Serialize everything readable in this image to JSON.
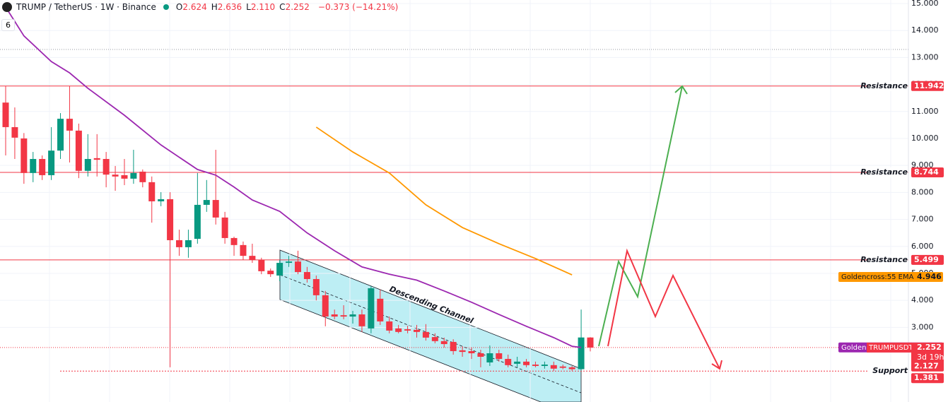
{
  "header": {
    "symbol": "TRUMP / TetherUS · 1W · Binance",
    "ohlc": [
      {
        "key": "O",
        "text": "2.624"
      },
      {
        "key": "H",
        "text": "2.636"
      },
      {
        "key": "L",
        "text": "2.110"
      },
      {
        "key": "C",
        "text": "2.252"
      }
    ],
    "change": "−0.373 (−14.21%)",
    "indicators_count": "6"
  },
  "chart_data": {
    "type": "candlestick",
    "open": [
      11.33,
      10.42,
      10.0,
      8.72,
      9.24,
      8.64,
      9.55,
      10.73,
      10.29,
      8.8,
      9.27,
      9.24,
      8.66,
      8.64,
      8.51,
      8.77,
      8.38,
      7.67,
      7.75,
      6.23,
      5.97,
      6.28,
      7.54,
      7.72,
      7.07,
      6.31,
      6.05,
      5.65,
      5.5,
      5.1,
      4.92,
      5.39,
      5.44,
      5.05,
      4.79,
      4.19,
      3.48,
      3.45,
      3.4,
      3.48,
      2.96,
      4.06,
      3.22,
      2.96,
      2.93,
      2.91,
      2.83,
      2.64,
      2.49,
      2.46,
      2.15,
      2.12,
      2.04,
      1.7,
      2.04,
      1.83,
      1.65,
      1.73,
      1.62,
      1.57,
      1.6,
      1.55,
      1.52,
      1.45,
      2.624
    ],
    "high": [
      11.94,
      11.15,
      10.2,
      9.5,
      9.37,
      10.42,
      10.94,
      11.94,
      10.55,
      10.16,
      10.16,
      9.5,
      8.98,
      9.24,
      9.58,
      8.85,
      8.59,
      8.01,
      8.01,
      6.62,
      6.62,
      8.72,
      8.46,
      9.58,
      7.28,
      6.36,
      6.18,
      6.1,
      5.58,
      5.18,
      5.5,
      5.65,
      5.84,
      5.24,
      4.92,
      4.35,
      3.66,
      3.82,
      3.61,
      3.66,
      4.53,
      4.4,
      3.4,
      3.09,
      3.06,
      3.09,
      3.12,
      2.78,
      2.62,
      2.56,
      2.3,
      2.25,
      2.17,
      2.33,
      2.17,
      1.99,
      1.91,
      1.83,
      1.73,
      1.73,
      1.73,
      1.62,
      1.57,
      3.66,
      2.636
    ],
    "low": [
      9.37,
      9.24,
      8.32,
      8.38,
      8.46,
      8.46,
      9.24,
      9.11,
      8.53,
      8.59,
      8.59,
      8.19,
      8.06,
      8.27,
      8.32,
      8.19,
      6.88,
      7.49,
      1.52,
      5.65,
      5.58,
      6.1,
      7.28,
      6.81,
      6.1,
      5.65,
      5.5,
      5.39,
      4.97,
      4.87,
      4.71,
      5.24,
      4.97,
      4.66,
      4.0,
      3.04,
      3.3,
      3.3,
      3.14,
      2.83,
      2.78,
      3.09,
      2.78,
      2.78,
      2.78,
      2.62,
      2.51,
      2.41,
      2.25,
      1.99,
      1.91,
      1.83,
      1.52,
      1.57,
      1.73,
      1.52,
      1.52,
      1.52,
      1.52,
      1.47,
      1.39,
      1.45,
      1.39,
      1.39,
      2.11
    ],
    "close": [
      10.42,
      10.03,
      8.72,
      9.24,
      8.64,
      9.55,
      10.73,
      10.29,
      8.8,
      9.24,
      9.21,
      8.66,
      8.59,
      8.51,
      8.72,
      8.38,
      7.67,
      7.75,
      6.23,
      5.97,
      6.23,
      7.54,
      7.72,
      7.07,
      6.31,
      6.05,
      5.65,
      5.5,
      5.08,
      4.97,
      5.39,
      5.44,
      5.05,
      4.79,
      4.19,
      3.4,
      3.4,
      3.4,
      3.48,
      3.04,
      4.45,
      3.22,
      2.88,
      2.83,
      2.88,
      2.83,
      2.62,
      2.49,
      2.38,
      2.12,
      2.09,
      2.04,
      1.91,
      2.04,
      1.83,
      1.6,
      1.73,
      1.6,
      1.57,
      1.62,
      1.47,
      1.5,
      1.45,
      2.625,
      2.252
    ],
    "up_color": "#089981",
    "down_color": "#f23645",
    "ylim": [
      0.234,
      15.131
    ],
    "yticks": [
      {
        "value": 3,
        "label": "3.000"
      },
      {
        "value": 4,
        "label": "4.000"
      },
      {
        "value": 5,
        "label": "5.000"
      },
      {
        "value": 6,
        "label": "6.000"
      },
      {
        "value": 7,
        "label": "7.000"
      },
      {
        "value": 8,
        "label": "8.000"
      },
      {
        "value": 9,
        "label": "9.000"
      },
      {
        "value": 10,
        "label": "10.000"
      },
      {
        "value": 11,
        "label": "11.000"
      },
      {
        "value": 12,
        "label": "12.000"
      },
      {
        "value": 13,
        "label": "13.000"
      },
      {
        "value": 14,
        "label": "14.000"
      },
      {
        "value": 15,
        "label": "15.000"
      }
    ],
    "grid": true,
    "series": [
      {
        "name": "Goldencross:21 EMA",
        "color": "#9c27b0",
        "x": [
          0,
          2,
          5,
          7,
          9,
          13,
          17,
          21,
          23,
          25,
          27,
          30,
          33,
          36,
          39,
          42,
          45,
          48,
          51,
          54,
          57,
          60,
          62,
          63
        ],
        "values": [
          14.87,
          13.8,
          12.85,
          12.43,
          11.86,
          10.86,
          9.76,
          8.85,
          8.64,
          8.2,
          7.72,
          7.3,
          6.5,
          5.84,
          5.24,
          4.97,
          4.75,
          4.35,
          3.93,
          3.48,
          3.04,
          2.62,
          2.3,
          2.255
        ],
        "last_value": 2.255
      },
      {
        "name": "Goldencross:55 EMA",
        "color": "#ff9800",
        "x": [
          34,
          38,
          42,
          46,
          50,
          54,
          58,
          62
        ],
        "values": [
          10.42,
          9.5,
          8.72,
          7.54,
          6.7,
          6.1,
          5.55,
          4.946
        ],
        "last_value": 4.946
      }
    ],
    "levels": [
      {
        "label": "Resistance",
        "value": 11.942
      },
      {
        "label": "Resistance",
        "value": 8.744
      },
      {
        "label": "Resistance",
        "value": 5.499
      },
      {
        "label": "Support",
        "value": 1.381
      }
    ],
    "price_label": {
      "name": "TRUMPUSDT",
      "value": 2.252,
      "countdown": "3d 19h"
    },
    "extra_price": 2.127,
    "annotation": "Descending Channel"
  }
}
